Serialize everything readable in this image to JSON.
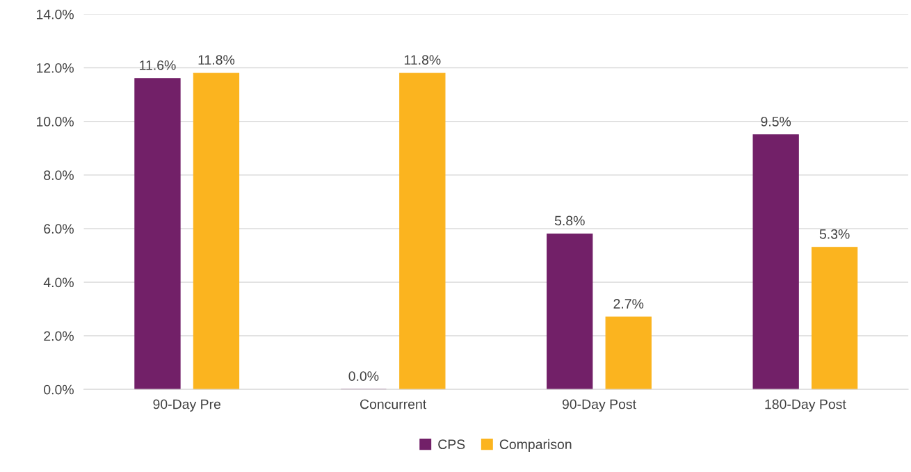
{
  "chart_data": {
    "type": "bar",
    "categories": [
      "90-Day Pre",
      "Concurrent",
      "90-Day Post",
      "180-Day Post"
    ],
    "series": [
      {
        "name": "CPS",
        "color": "#722068",
        "values": [
          11.6,
          0.0,
          5.8,
          9.5
        ],
        "value_labels": [
          "11.6%",
          "0.0%",
          "5.8%",
          "9.5%"
        ]
      },
      {
        "name": "Comparison",
        "color": "#fbb41f",
        "values": [
          11.8,
          11.8,
          2.7,
          5.3
        ],
        "value_labels": [
          "11.8%",
          "11.8%",
          "2.7%",
          "5.3%"
        ]
      }
    ],
    "ylim": [
      0,
      14
    ],
    "yticks": [
      {
        "value": 0,
        "label": "0.0%"
      },
      {
        "value": 2,
        "label": "2.0%"
      },
      {
        "value": 4,
        "label": "4.0%"
      },
      {
        "value": 6,
        "label": "6.0%"
      },
      {
        "value": 8,
        "label": "8.0%"
      },
      {
        "value": 10,
        "label": "10.0%"
      },
      {
        "value": 12,
        "label": "12.0%"
      },
      {
        "value": 14,
        "label": "14.0%"
      }
    ],
    "grid": "y",
    "legend": "bottom"
  }
}
